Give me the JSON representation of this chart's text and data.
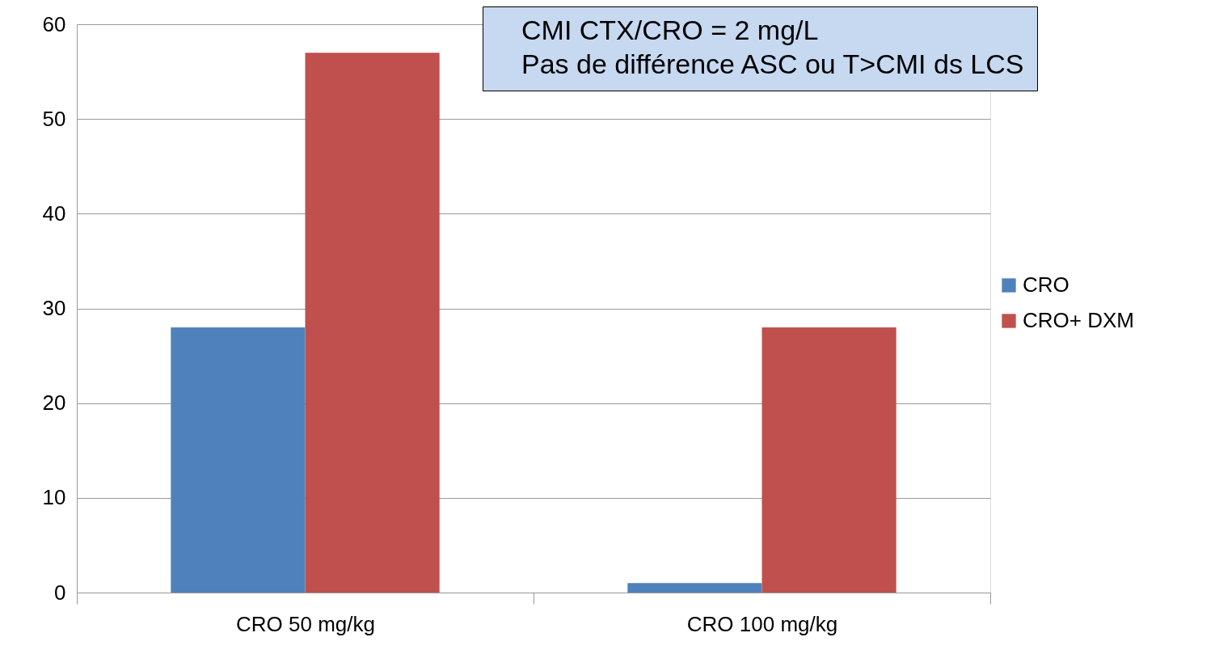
{
  "chart_data": {
    "type": "bar",
    "categories": [
      "CRO 50 mg/kg",
      "CRO 100 mg/kg"
    ],
    "series": [
      {
        "name": "CRO",
        "color": "#4f81bd",
        "values": [
          28,
          1
        ]
      },
      {
        "name": "CRO+ DXM",
        "color": "#c0504d",
        "values": [
          57,
          28
        ]
      }
    ],
    "ylim": [
      0,
      60
    ],
    "yticks": [
      0,
      10,
      20,
      30,
      40,
      50,
      60
    ],
    "grid": "y",
    "legend": "right",
    "annotations": [
      "CMI CTX/CRO = 2 mg/L",
      "Pas de différence ASC ou T>CMI ds LCS"
    ]
  }
}
